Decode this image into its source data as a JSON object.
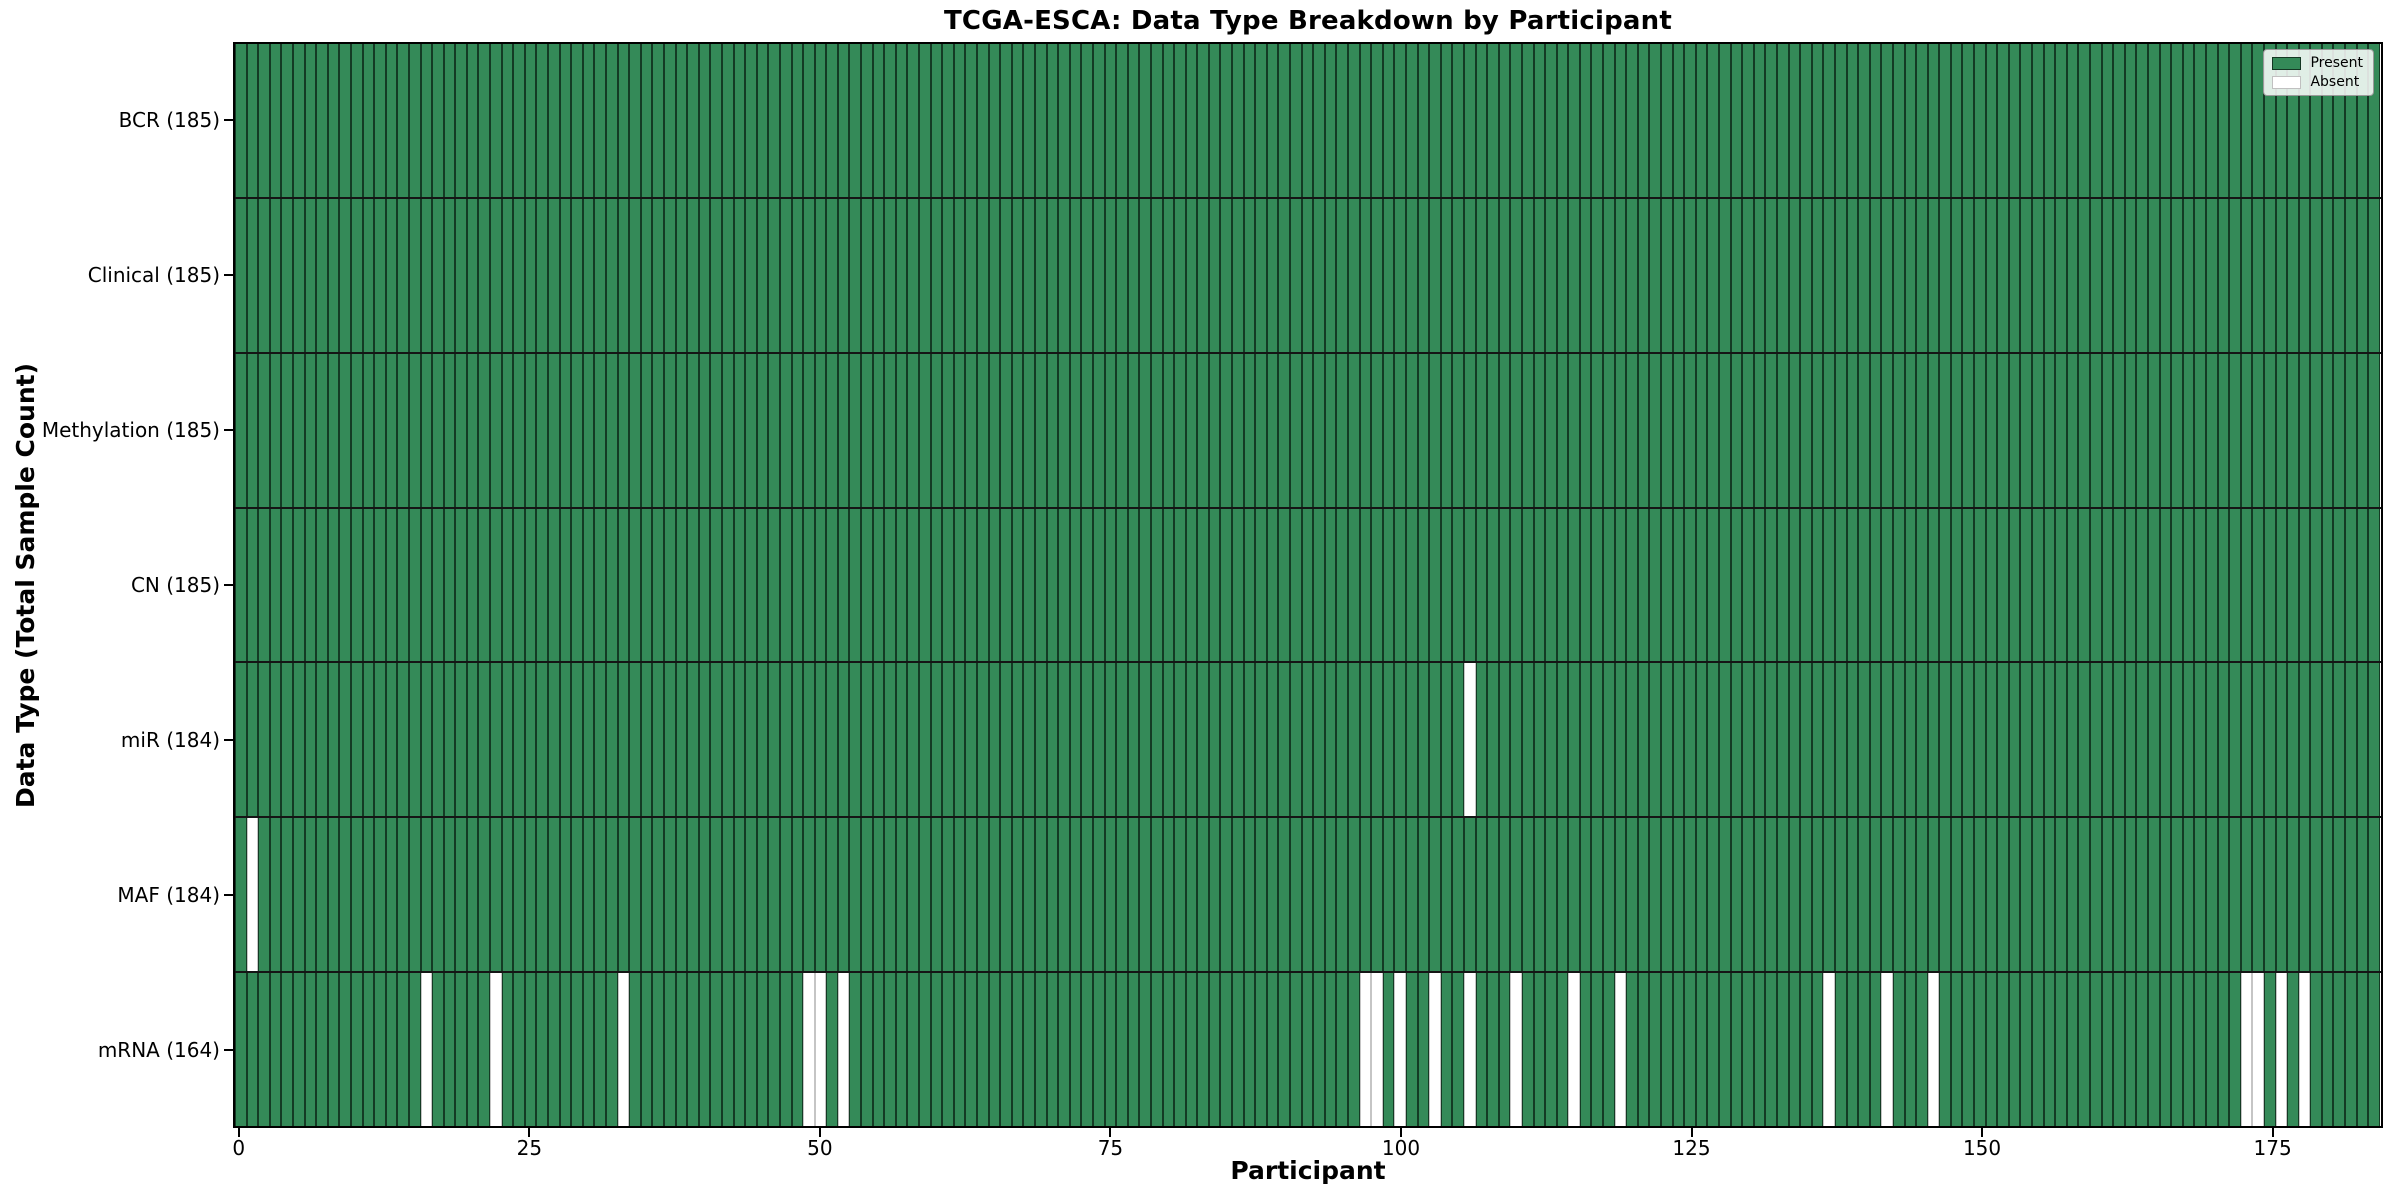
{
  "figure": {
    "background": "#ffffff"
  },
  "chart_data": {
    "type": "heatmap",
    "title": "TCGA-ESCA: Data Type Breakdown by Participant",
    "xlabel": "Participant",
    "ylabel": "Data Type (Total Sample Count)",
    "n_participants": 185,
    "x_ticks": [
      0,
      25,
      50,
      75,
      100,
      125,
      150,
      175
    ],
    "xlim": [
      -0.5,
      184.5
    ],
    "grid": false,
    "present_color": "#348a58",
    "absent_color": "#ffffff",
    "rows": [
      {
        "label": "BCR (185)",
        "data_type": "BCR",
        "total_count": 185,
        "absent_participants": []
      },
      {
        "label": "Clinical (185)",
        "data_type": "Clinical",
        "total_count": 185,
        "absent_participants": []
      },
      {
        "label": "Methylation (185)",
        "data_type": "Methylation",
        "total_count": 185,
        "absent_participants": []
      },
      {
        "label": "CN (185)",
        "data_type": "CN",
        "total_count": 185,
        "absent_participants": []
      },
      {
        "label": "miR (184)",
        "data_type": "miR",
        "total_count": 184,
        "absent_participants": [
          106
        ]
      },
      {
        "label": "MAF (184)",
        "data_type": "MAF",
        "total_count": 184,
        "absent_participants": [
          1
        ]
      },
      {
        "label": "mRNA (164)",
        "data_type": "mRNA",
        "total_count": 164,
        "absent_participants": [
          16,
          22,
          33,
          49,
          50,
          52,
          97,
          98,
          100,
          103,
          106,
          110,
          115,
          119,
          137,
          142,
          146,
          173,
          174,
          176,
          178
        ]
      }
    ],
    "legend": {
      "position": "upper right",
      "items": [
        {
          "label": "Present",
          "color": "#348a58"
        },
        {
          "label": "Absent",
          "color": "#ffffff"
        }
      ]
    }
  }
}
